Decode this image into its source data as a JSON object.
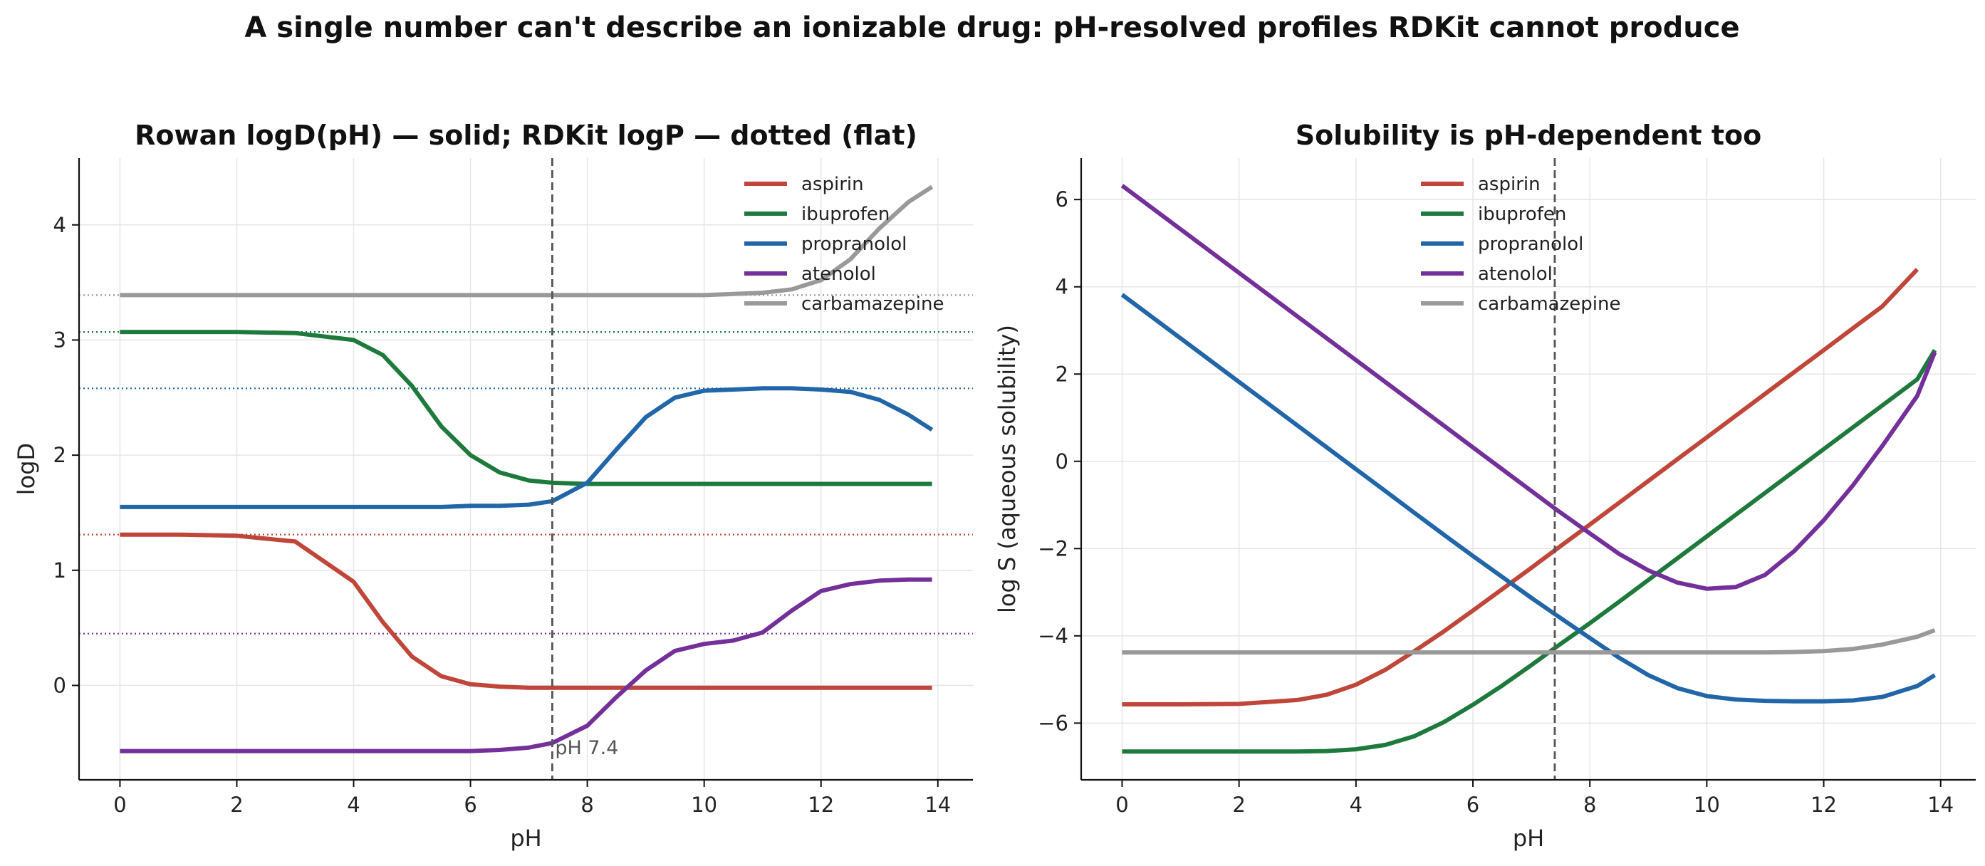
{
  "figure_title": "A single number can't describe an ionizable drug: pH-resolved profiles RDKit cannot produce",
  "colors": {
    "aspirin": "#c0463a",
    "ibuprofen": "#1e7a3c",
    "propranolol": "#2166a8",
    "atenolol": "#74309a",
    "carbamazepine": "#999999"
  },
  "chart_data": [
    {
      "type": "line",
      "title": "Rowan logD(pH)  —  solid;   RDKit logP  —  dotted (flat)",
      "xlabel": "pH",
      "ylabel": "logD",
      "xlim": [
        -0.7,
        14.6
      ],
      "ylim": [
        -0.82,
        4.58
      ],
      "xticks": [
        0,
        2,
        4,
        6,
        8,
        10,
        12,
        14
      ],
      "yticks": [
        0,
        1,
        2,
        3,
        4
      ],
      "grid": true,
      "legend": "top-right",
      "vline": {
        "x": 7.4,
        "label": "pH 7.4"
      },
      "reference_lines": [
        {
          "name": "aspirin",
          "y": 1.31
        },
        {
          "name": "ibuprofen",
          "y": 3.07
        },
        {
          "name": "propranolol",
          "y": 2.58
        },
        {
          "name": "atenolol",
          "y": 0.45
        },
        {
          "name": "carbamazepine",
          "y": 3.39
        }
      ],
      "x": [
        0,
        1,
        2,
        3,
        4,
        4.5,
        5,
        5.5,
        6,
        6.5,
        7,
        7.4,
        8,
        8.5,
        9,
        9.5,
        10,
        10.5,
        11,
        11.5,
        12,
        12.5,
        13,
        13.5,
        13.9
      ],
      "series": [
        {
          "name": "aspirin",
          "values": [
            1.31,
            1.31,
            1.3,
            1.25,
            0.9,
            0.55,
            0.25,
            0.08,
            0.01,
            -0.01,
            -0.02,
            -0.02,
            -0.02,
            -0.02,
            -0.02,
            -0.02,
            -0.02,
            -0.02,
            -0.02,
            -0.02,
            -0.02,
            -0.02,
            -0.02,
            -0.02,
            -0.02
          ]
        },
        {
          "name": "ibuprofen",
          "values": [
            3.07,
            3.07,
            3.07,
            3.06,
            3.0,
            2.87,
            2.6,
            2.25,
            2.0,
            1.85,
            1.78,
            1.76,
            1.75,
            1.75,
            1.75,
            1.75,
            1.75,
            1.75,
            1.75,
            1.75,
            1.75,
            1.75,
            1.75,
            1.75,
            1.75
          ]
        },
        {
          "name": "propranolol",
          "values": [
            1.55,
            1.55,
            1.55,
            1.55,
            1.55,
            1.55,
            1.55,
            1.55,
            1.56,
            1.56,
            1.57,
            1.6,
            1.76,
            2.05,
            2.33,
            2.5,
            2.56,
            2.57,
            2.58,
            2.58,
            2.57,
            2.55,
            2.48,
            2.35,
            2.22
          ]
        },
        {
          "name": "atenolol",
          "values": [
            -0.57,
            -0.57,
            -0.57,
            -0.57,
            -0.57,
            -0.57,
            -0.57,
            -0.57,
            -0.57,
            -0.56,
            -0.54,
            -0.5,
            -0.35,
            -0.1,
            0.13,
            0.3,
            0.36,
            0.39,
            0.46,
            0.65,
            0.82,
            0.88,
            0.91,
            0.92,
            0.92
          ]
        },
        {
          "name": "carbamazepine",
          "values": [
            3.39,
            3.39,
            3.39,
            3.39,
            3.39,
            3.39,
            3.39,
            3.39,
            3.39,
            3.39,
            3.39,
            3.39,
            3.39,
            3.39,
            3.39,
            3.39,
            3.39,
            3.4,
            3.41,
            3.44,
            3.52,
            3.7,
            3.97,
            4.2,
            4.33
          ]
        }
      ]
    },
    {
      "type": "line",
      "title": "Solubility is pH-dependent too",
      "xlabel": "pH",
      "ylabel": "log S  (aqueous solubility)",
      "xlim": [
        -0.7,
        14.6
      ],
      "ylim": [
        -7.3,
        6.95
      ],
      "xticks": [
        0,
        2,
        4,
        6,
        8,
        10,
        12,
        14
      ],
      "yticks": [
        -6,
        -4,
        -2,
        0,
        2,
        4,
        6
      ],
      "grid": true,
      "legend": "top-center",
      "vline": {
        "x": 7.4
      },
      "x": [
        0,
        1,
        2,
        3,
        3.5,
        4,
        4.5,
        5,
        5.5,
        6,
        6.5,
        7,
        7.4,
        8,
        8.5,
        9,
        9.5,
        10,
        10.5,
        11,
        11.5,
        12,
        12.5,
        13,
        13.6,
        13.9
      ],
      "series": [
        {
          "name": "aspirin",
          "values": [
            -5.57,
            -5.57,
            -5.56,
            -5.47,
            -5.35,
            -5.12,
            -4.78,
            -4.35,
            -3.9,
            -3.42,
            -2.93,
            -2.44,
            -2.04,
            -1.45,
            -0.95,
            -0.45,
            0.05,
            0.55,
            1.05,
            1.55,
            2.05,
            2.55,
            3.05,
            3.55,
            4.4,
            null
          ]
        },
        {
          "name": "ibuprofen",
          "values": [
            -6.65,
            -6.65,
            -6.65,
            -6.65,
            -6.64,
            -6.6,
            -6.5,
            -6.3,
            -5.98,
            -5.58,
            -5.14,
            -4.67,
            -4.28,
            -3.71,
            -3.22,
            -2.72,
            -2.22,
            -1.72,
            -1.22,
            -0.72,
            -0.22,
            0.28,
            0.78,
            1.28,
            1.88,
            2.55
          ]
        },
        {
          "name": "propranolol",
          "values": [
            3.82,
            2.82,
            1.82,
            0.82,
            0.32,
            -0.18,
            -0.68,
            -1.18,
            -1.68,
            -2.17,
            -2.65,
            -3.13,
            -3.5,
            -4.05,
            -4.5,
            -4.9,
            -5.2,
            -5.38,
            -5.46,
            -5.49,
            -5.5,
            -5.5,
            -5.48,
            -5.4,
            -5.15,
            -4.9
          ]
        },
        {
          "name": "atenolol",
          "values": [
            6.32,
            5.32,
            4.32,
            3.32,
            2.82,
            2.32,
            1.82,
            1.32,
            0.82,
            0.32,
            -0.18,
            -0.68,
            -1.08,
            -1.65,
            -2.12,
            -2.5,
            -2.78,
            -2.92,
            -2.88,
            -2.6,
            -2.05,
            -1.35,
            -0.55,
            0.35,
            1.5,
            2.5
          ]
        },
        {
          "name": "carbamazepine",
          "values": [
            -4.38,
            -4.38,
            -4.38,
            -4.38,
            -4.38,
            -4.38,
            -4.38,
            -4.38,
            -4.38,
            -4.38,
            -4.38,
            -4.38,
            -4.38,
            -4.38,
            -4.38,
            -4.38,
            -4.38,
            -4.38,
            -4.38,
            -4.38,
            -4.37,
            -4.35,
            -4.3,
            -4.2,
            -4.02,
            -3.87
          ]
        }
      ]
    }
  ]
}
